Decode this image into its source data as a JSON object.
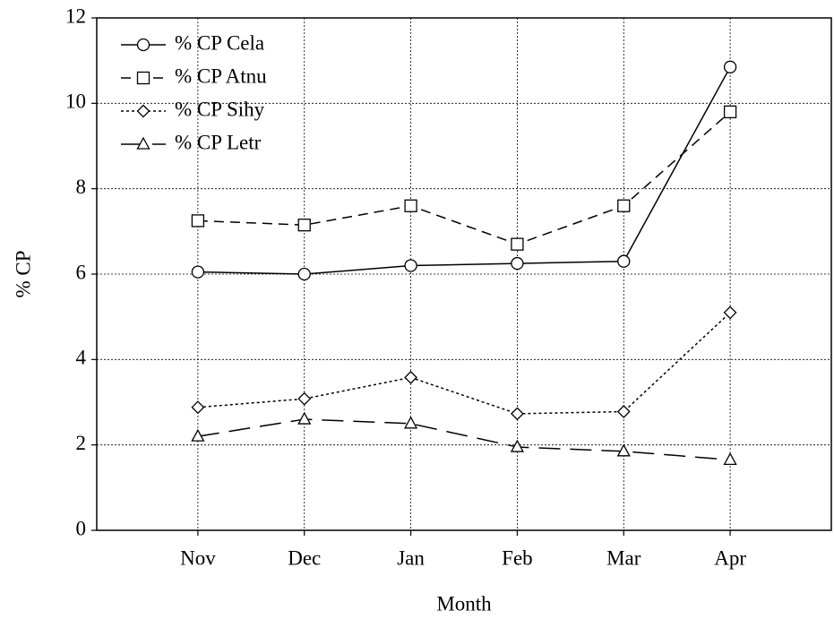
{
  "chart_data": {
    "type": "line",
    "xlabel": "Month",
    "ylabel": "% CP",
    "categories": [
      "Nov",
      "Dec",
      "Jan",
      "Feb",
      "Mar",
      "Apr"
    ],
    "series": [
      {
        "name": "% CP Cela",
        "color": "#000000",
        "marker": "circle",
        "dash": "solid",
        "values": [
          6.05,
          6.0,
          6.2,
          6.25,
          6.3,
          10.85
        ]
      },
      {
        "name": "% CP Atnu",
        "color": "#000000",
        "marker": "square",
        "dash": "dashed",
        "values": [
          7.25,
          7.15,
          7.6,
          6.7,
          7.6,
          9.8
        ]
      },
      {
        "name": "% CP Sihy",
        "color": "#000000",
        "marker": "diamond",
        "dash": "dotted",
        "values": [
          2.88,
          3.08,
          3.58,
          2.73,
          2.78,
          5.1
        ]
      },
      {
        "name": "% CP Letr",
        "color": "#000000",
        "marker": "triangle",
        "dash": "longdash",
        "values": [
          2.2,
          2.6,
          2.5,
          1.95,
          1.85,
          1.65
        ]
      }
    ],
    "ylim": [
      0,
      12
    ],
    "yticks": [
      0,
      2,
      4,
      6,
      8,
      10,
      12
    ],
    "grid": true,
    "legend": "upper left"
  }
}
